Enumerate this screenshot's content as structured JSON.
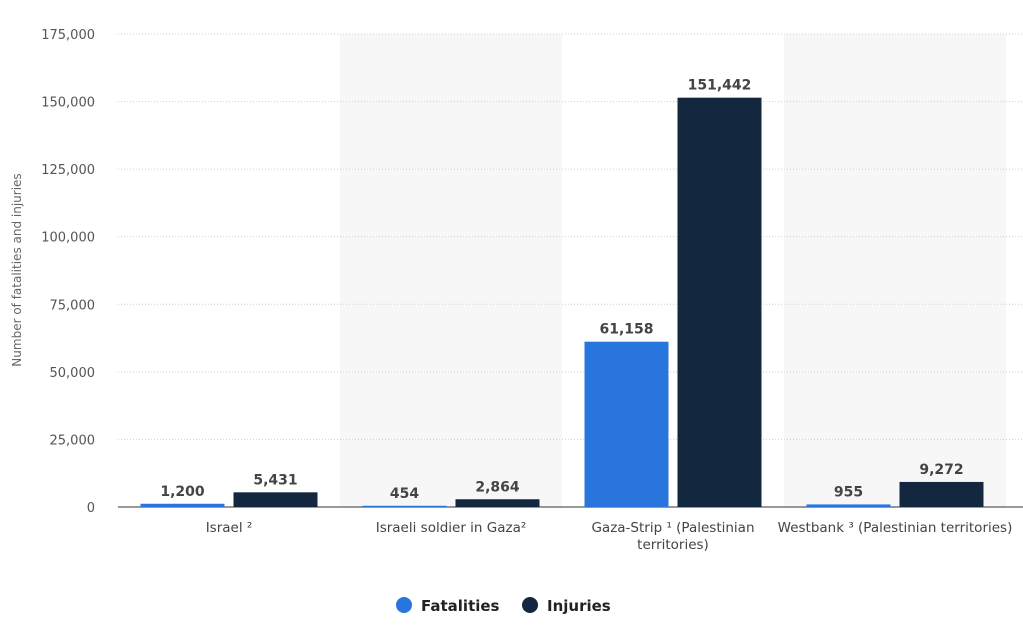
{
  "chart_data": {
    "type": "bar",
    "title": "",
    "xlabel": "",
    "ylabel": "Number of fatalities and injuries",
    "ylim": [
      0,
      175000
    ],
    "yticks": [
      0,
      25000,
      50000,
      75000,
      100000,
      125000,
      150000,
      175000
    ],
    "ytick_labels": [
      "0",
      "25,000",
      "50,000",
      "75,000",
      "100,000",
      "125,000",
      "150,000",
      "175,000"
    ],
    "grid": true,
    "legend_position": "bottom-center",
    "categories": [
      [
        "Israel ²"
      ],
      [
        "Israeli soldier in Gaza²"
      ],
      [
        "Gaza-Strip ¹ (Palestinian",
        "territories)"
      ],
      [
        "Westbank ³ (Palestinian territories)"
      ]
    ],
    "series": [
      {
        "name": "Fatalities",
        "color": "#2876dd",
        "values": [
          1200,
          454,
          61158,
          955
        ],
        "labels": [
          "1,200",
          "454",
          "61,158",
          "955"
        ]
      },
      {
        "name": "Injuries",
        "color": "#13273f",
        "values": [
          5431,
          2864,
          151442,
          9272
        ],
        "labels": [
          "5,431",
          "2,864",
          "151,442",
          "9,272"
        ]
      }
    ]
  }
}
